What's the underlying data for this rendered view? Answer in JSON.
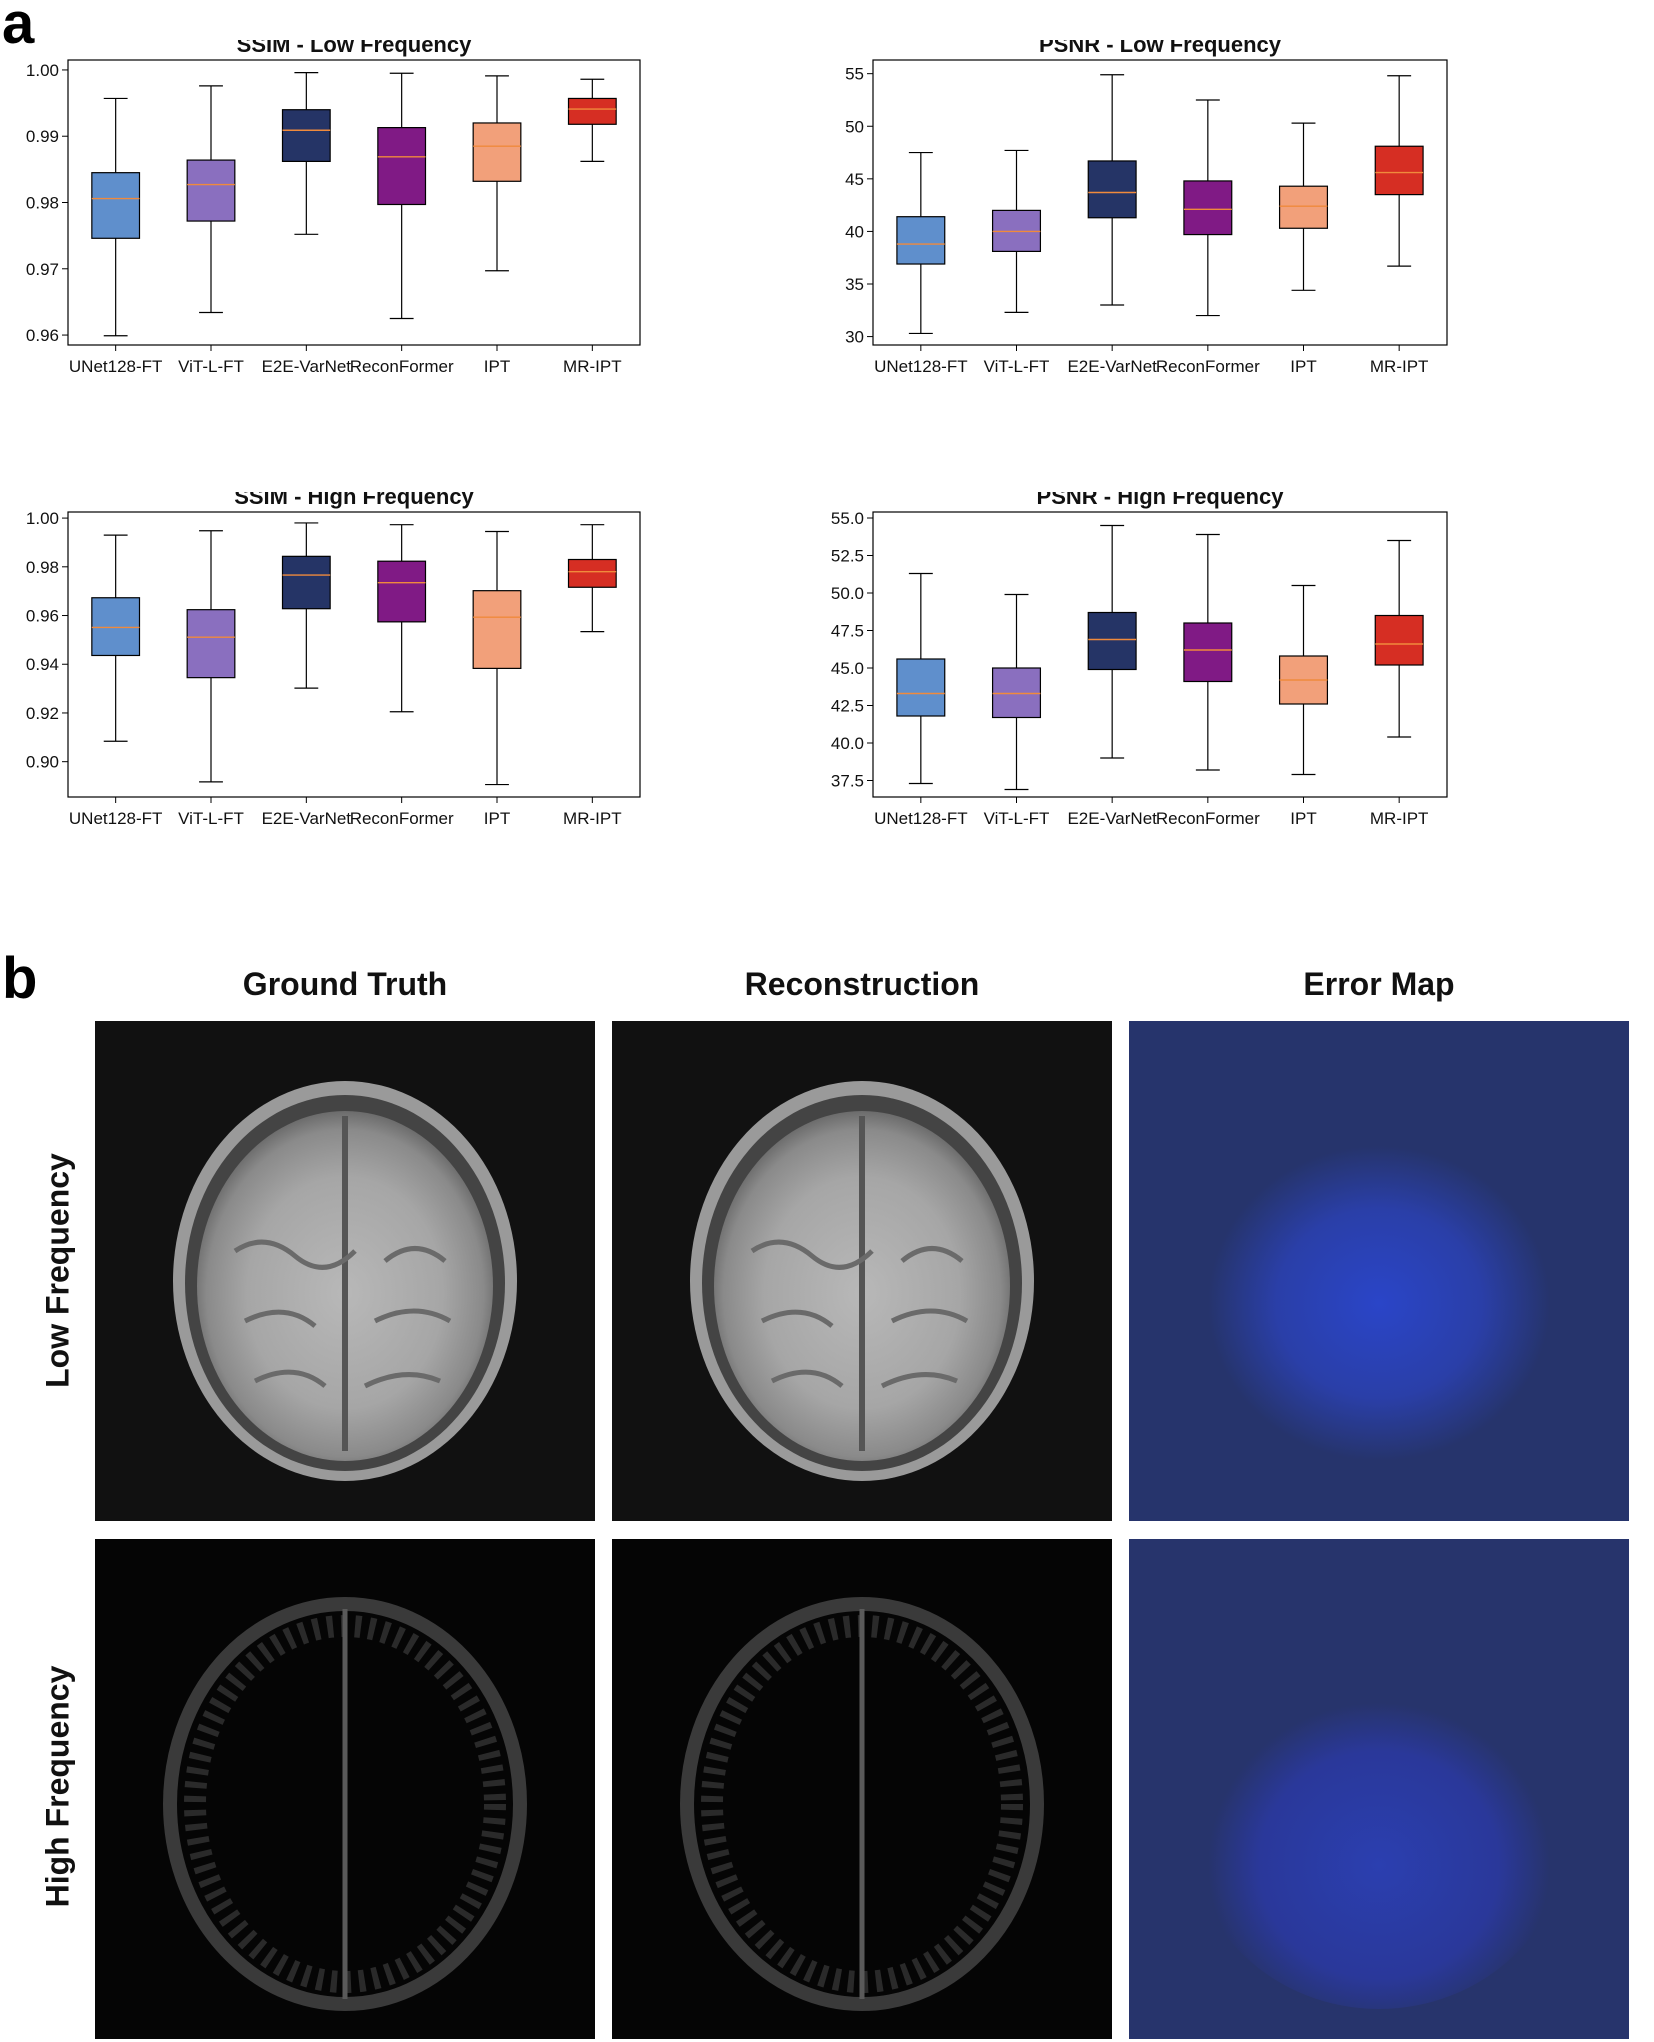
{
  "panels": {
    "a": "a",
    "b": "b"
  },
  "colors": {
    "boxes": [
      "#5f8fcc",
      "#8a6fbf",
      "#253466",
      "#801a85",
      "#f2a07a",
      "#d62e23"
    ],
    "median": "#f08a3c"
  },
  "chart_data": [
    {
      "type": "box",
      "title": "SSIM - Low Frequency",
      "categories": [
        "UNet128-FT",
        "ViT-L-FT",
        "E2E-VarNet",
        "ReconFormer",
        "IPT",
        "MR-IPT"
      ],
      "ylim": [
        0.9585,
        1.0015
      ],
      "yticks": [
        0.96,
        0.97,
        0.98,
        0.99,
        1.0
      ],
      "ytick_labels": [
        "0.96",
        "0.97",
        "0.98",
        "0.99",
        "1.00"
      ],
      "boxes": [
        {
          "whislo": 0.9599,
          "q1": 0.9746,
          "med": 0.9806,
          "q3": 0.9845,
          "whishi": 0.9957
        },
        {
          "whislo": 0.9634,
          "q1": 0.9772,
          "med": 0.9827,
          "q3": 0.9864,
          "whishi": 0.9976
        },
        {
          "whislo": 0.9752,
          "q1": 0.9862,
          "med": 0.9909,
          "q3": 0.994,
          "whishi": 0.9996
        },
        {
          "whislo": 0.9625,
          "q1": 0.9797,
          "med": 0.9869,
          "q3": 0.9913,
          "whishi": 0.9995
        },
        {
          "whislo": 0.9697,
          "q1": 0.9832,
          "med": 0.9885,
          "q3": 0.992,
          "whishi": 0.9991
        },
        {
          "whislo": 0.9862,
          "q1": 0.9918,
          "med": 0.9941,
          "q3": 0.9957,
          "whishi": 0.9986
        }
      ]
    },
    {
      "type": "box",
      "title": "PSNR - Low Frequency",
      "categories": [
        "UNet128-FT",
        "ViT-L-FT",
        "E2E-VarNet",
        "ReconFormer",
        "IPT",
        "MR-IPT"
      ],
      "ylim": [
        29.2,
        56.3
      ],
      "yticks": [
        30,
        35,
        40,
        45,
        50,
        55
      ],
      "ytick_labels": [
        "30",
        "35",
        "40",
        "45",
        "50",
        "55"
      ],
      "boxes": [
        {
          "whislo": 30.3,
          "q1": 36.9,
          "med": 38.8,
          "q3": 41.4,
          "whishi": 47.5
        },
        {
          "whislo": 32.3,
          "q1": 38.1,
          "med": 40.0,
          "q3": 42.0,
          "whishi": 47.7
        },
        {
          "whislo": 33.0,
          "q1": 41.3,
          "med": 43.7,
          "q3": 46.7,
          "whishi": 54.9
        },
        {
          "whislo": 32.0,
          "q1": 39.7,
          "med": 42.1,
          "q3": 44.8,
          "whishi": 52.5
        },
        {
          "whislo": 34.4,
          "q1": 40.3,
          "med": 42.4,
          "q3": 44.3,
          "whishi": 50.3
        },
        {
          "whislo": 36.7,
          "q1": 43.5,
          "med": 45.6,
          "q3": 48.1,
          "whishi": 54.8
        }
      ]
    },
    {
      "type": "box",
      "title": "SSIM - High Frequency",
      "categories": [
        "UNet128-FT",
        "ViT-L-FT",
        "E2E-VarNet",
        "ReconFormer",
        "IPT",
        "MR-IPT"
      ],
      "ylim": [
        0.8855,
        1.0025
      ],
      "yticks": [
        0.9,
        0.92,
        0.94,
        0.96,
        0.98,
        1.0
      ],
      "ytick_labels": [
        "0.90",
        "0.92",
        "0.94",
        "0.96",
        "0.98",
        "1.00"
      ],
      "boxes": [
        {
          "whislo": 0.9084,
          "q1": 0.9436,
          "med": 0.9551,
          "q3": 0.9673,
          "whishi": 0.993
        },
        {
          "whislo": 0.8917,
          "q1": 0.9345,
          "med": 0.9511,
          "q3": 0.9624,
          "whishi": 0.9948
        },
        {
          "whislo": 0.9302,
          "q1": 0.9628,
          "med": 0.9766,
          "q3": 0.9843,
          "whishi": 0.998
        },
        {
          "whislo": 0.9205,
          "q1": 0.9574,
          "med": 0.9735,
          "q3": 0.9823,
          "whishi": 0.9973
        },
        {
          "whislo": 0.8906,
          "q1": 0.9383,
          "med": 0.9593,
          "q3": 0.9702,
          "whishi": 0.9945
        },
        {
          "whislo": 0.9534,
          "q1": 0.9716,
          "med": 0.978,
          "q3": 0.983,
          "whishi": 0.9973
        }
      ]
    },
    {
      "type": "box",
      "title": "PSNR - High Frequency",
      "categories": [
        "UNet128-FT",
        "ViT-L-FT",
        "E2E-VarNet",
        "ReconFormer",
        "IPT",
        "MR-IPT"
      ],
      "ylim": [
        36.4,
        55.4
      ],
      "yticks": [
        37.5,
        40.0,
        42.5,
        45.0,
        47.5,
        50.0,
        52.5,
        55.0
      ],
      "ytick_labels": [
        "37.5",
        "40.0",
        "42.5",
        "45.0",
        "47.5",
        "50.0",
        "52.5",
        "55.0"
      ],
      "boxes": [
        {
          "whislo": 37.3,
          "q1": 41.8,
          "med": 43.3,
          "q3": 45.6,
          "whishi": 51.3
        },
        {
          "whislo": 36.9,
          "q1": 41.7,
          "med": 43.3,
          "q3": 45.0,
          "whishi": 49.9
        },
        {
          "whislo": 39.0,
          "q1": 44.9,
          "med": 46.9,
          "q3": 48.7,
          "whishi": 54.5
        },
        {
          "whislo": 38.2,
          "q1": 44.1,
          "med": 46.2,
          "q3": 48.0,
          "whishi": 53.9
        },
        {
          "whislo": 37.9,
          "q1": 42.6,
          "med": 44.2,
          "q3": 45.8,
          "whishi": 50.5
        },
        {
          "whislo": 40.4,
          "q1": 45.2,
          "med": 46.6,
          "q3": 48.5,
          "whishi": 53.5
        }
      ]
    }
  ],
  "images": {
    "col_titles": [
      "Ground Truth",
      "Reconstruction",
      "Error Map"
    ],
    "row_labels": [
      "Low Frequency",
      "High Frequency"
    ]
  }
}
